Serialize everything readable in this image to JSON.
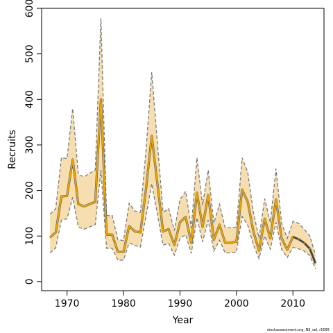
{
  "chart_data": {
    "type": "line",
    "title": "",
    "xlabel": "Year",
    "ylabel": "Recruits",
    "xlim": [
      1965.5,
      2015.5
    ],
    "ylim": [
      -20,
      600
    ],
    "xticks": [
      1970,
      1980,
      1990,
      2000,
      2010
    ],
    "yticks": [
      0,
      100,
      200,
      300,
      400,
      500,
      600
    ],
    "grid": false,
    "legend": "none",
    "colors": {
      "band_fill": "#f6deb0",
      "band_edge": "#7a7a7a",
      "estimate_line": "#f0a800",
      "estimate_outline": "#5c5c5c",
      "recent_line": "#404040"
    },
    "x": [
      1967,
      1968,
      1969,
      1970,
      1971,
      1972,
      1973,
      1974,
      1975,
      1976,
      1977,
      1978,
      1979,
      1980,
      1981,
      1982,
      1983,
      1984,
      1985,
      1986,
      1987,
      1988,
      1989,
      1990,
      1991,
      1992,
      1993,
      1994,
      1995,
      1996,
      1997,
      1998,
      1999,
      2000,
      2001,
      2002,
      2003,
      2004,
      2005,
      2006,
      2007,
      2008,
      2009,
      2010,
      2011,
      2012,
      2013,
      2014
    ],
    "series": [
      {
        "values": [
          97,
          108,
          187,
          188,
          268,
          170,
          165,
          170,
          175,
          400,
          103,
          103,
          65,
          65,
          122,
          110,
          108,
          205,
          320,
          215,
          110,
          115,
          80,
          130,
          142,
          85,
          195,
          120,
          190,
          92,
          125,
          85,
          85,
          88,
          202,
          175,
          110,
          68,
          138,
          95,
          180,
          95,
          70,
          98,
          93,
          85,
          72,
          40
        ]
      },
      {
        "values": [
          63,
          74,
          135,
          138,
          185,
          120,
          115,
          120,
          125,
          245,
          73,
          73,
          47,
          47,
          85,
          79,
          76,
          145,
          215,
          148,
          80,
          84,
          58,
          95,
          103,
          62,
          140,
          87,
          135,
          67,
          91,
          63,
          63,
          65,
          143,
          124,
          81,
          50,
          100,
          71,
          130,
          70,
          53,
          75,
          72,
          67,
          57,
          28
        ]
      },
      {
        "values": [
          148,
          160,
          272,
          270,
          380,
          235,
          230,
          238,
          245,
          578,
          145,
          145,
          92,
          90,
          172,
          155,
          152,
          290,
          460,
          305,
          152,
          160,
          112,
          180,
          198,
          118,
          272,
          168,
          245,
          128,
          170,
          118,
          118,
          120,
          272,
          240,
          152,
          95,
          182,
          130,
          248,
          128,
          95,
          132,
          128,
          115,
          100,
          58
        ]
      }
    ],
    "footer": "stockassessment.org, NS_sel, r5095"
  }
}
